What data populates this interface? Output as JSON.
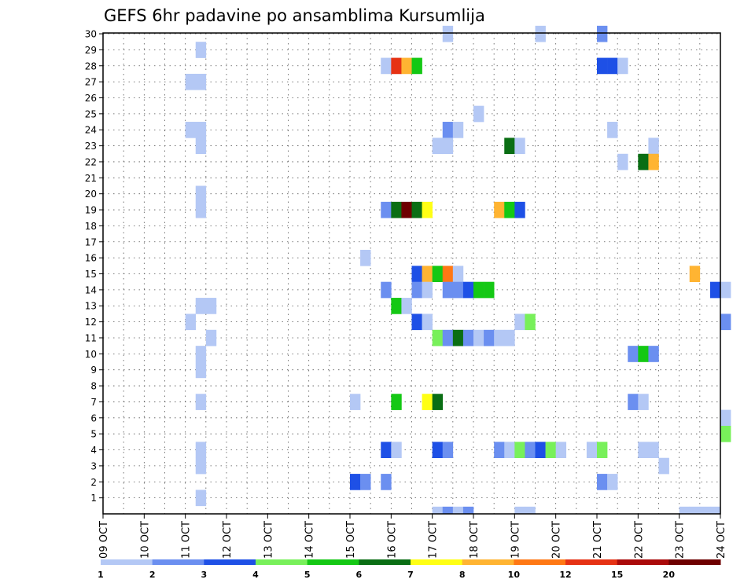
{
  "chart_data": {
    "type": "heatmap",
    "title": "GEFS 6hr padavine po ansamblima Kursumlija",
    "x_ticks": [
      "09 OCT",
      "10 OCT",
      "11 OCT",
      "12 OCT",
      "13 OCT",
      "14 OCT",
      "15 OCT",
      "16 OCT",
      "17 OCT",
      "18 OCT",
      "19 OCT",
      "20 OCT",
      "21 OCT",
      "22 OCT",
      "23 OCT",
      "24 OCT"
    ],
    "y_ticks": [
      "1",
      "2",
      "3",
      "4",
      "5",
      "6",
      "7",
      "8",
      "9",
      "10",
      "11",
      "12",
      "13",
      "14",
      "15",
      "16",
      "17",
      "18",
      "19",
      "20",
      "21",
      "22",
      "23",
      "24",
      "25",
      "26",
      "27",
      "28",
      "29",
      "30"
    ],
    "x_range": [
      "09 OCT 00z",
      "24 OCT 00z"
    ],
    "y_range": [
      0,
      30
    ],
    "step_hours": 6,
    "grid": true,
    "legend": {
      "placement": "bottom",
      "colors": [
        "#b4c8f5",
        "#6b8ff0",
        "#1e50e6",
        "#78f05a",
        "#14c814",
        "#0a6e14",
        "#ffff14",
        "#ffb432",
        "#ff7814",
        "#e63214",
        "#aa0a0a",
        "#6e0000"
      ],
      "labels": [
        "1",
        "2",
        "3",
        "4",
        "5",
        "6",
        "7",
        "8",
        "10",
        "12",
        "15",
        "20"
      ]
    },
    "cells": [
      {
        "m": 30,
        "t": 33,
        "c": 0
      },
      {
        "m": 30,
        "t": 42,
        "c": 0
      },
      {
        "m": 30,
        "t": 48,
        "c": 1
      },
      {
        "m": 29,
        "t": 9,
        "c": 0
      },
      {
        "m": 28,
        "t": 27,
        "c": 0
      },
      {
        "m": 28,
        "t": 28,
        "c": 9
      },
      {
        "m": 28,
        "t": 29,
        "c": 7
      },
      {
        "m": 28,
        "t": 30,
        "c": 4
      },
      {
        "m": 28,
        "t": 48,
        "c": 2
      },
      {
        "m": 28,
        "t": 49,
        "c": 2
      },
      {
        "m": 28,
        "t": 50,
        "c": 0
      },
      {
        "m": 27,
        "t": 8,
        "c": 0
      },
      {
        "m": 27,
        "t": 9,
        "c": 0
      },
      {
        "m": 25,
        "t": 36,
        "c": 0
      },
      {
        "m": 24,
        "t": 8,
        "c": 0
      },
      {
        "m": 24,
        "t": 9,
        "c": 0
      },
      {
        "m": 24,
        "t": 33,
        "c": 1
      },
      {
        "m": 24,
        "t": 34,
        "c": 0
      },
      {
        "m": 24,
        "t": 49,
        "c": 0
      },
      {
        "m": 23,
        "t": 9,
        "c": 0
      },
      {
        "m": 23,
        "t": 32,
        "c": 0
      },
      {
        "m": 23,
        "t": 33,
        "c": 0
      },
      {
        "m": 23,
        "t": 39,
        "c": 5
      },
      {
        "m": 23,
        "t": 40,
        "c": 0
      },
      {
        "m": 23,
        "t": 53,
        "c": 0
      },
      {
        "m": 22,
        "t": 50,
        "c": 0
      },
      {
        "m": 22,
        "t": 52,
        "c": 5
      },
      {
        "m": 22,
        "t": 53,
        "c": 7
      },
      {
        "m": 20,
        "t": 9,
        "c": 0
      },
      {
        "m": 19,
        "t": 9,
        "c": 0
      },
      {
        "m": 19,
        "t": 27,
        "c": 1
      },
      {
        "m": 19,
        "t": 28,
        "c": 5
      },
      {
        "m": 19,
        "t": 29,
        "c": 11
      },
      {
        "m": 19,
        "t": 30,
        "c": 5
      },
      {
        "m": 19,
        "t": 31,
        "c": 6
      },
      {
        "m": 19,
        "t": 38,
        "c": 7
      },
      {
        "m": 19,
        "t": 39,
        "c": 4
      },
      {
        "m": 19,
        "t": 40,
        "c": 2
      },
      {
        "m": 16,
        "t": 25,
        "c": 0
      },
      {
        "m": 15,
        "t": 30,
        "c": 2
      },
      {
        "m": 15,
        "t": 31,
        "c": 7
      },
      {
        "m": 15,
        "t": 32,
        "c": 4
      },
      {
        "m": 15,
        "t": 33,
        "c": 8
      },
      {
        "m": 15,
        "t": 34,
        "c": 0
      },
      {
        "m": 15,
        "t": 57,
        "c": 7
      },
      {
        "m": 14,
        "t": 27,
        "c": 1
      },
      {
        "m": 14,
        "t": 30,
        "c": 1
      },
      {
        "m": 14,
        "t": 31,
        "c": 0
      },
      {
        "m": 14,
        "t": 33,
        "c": 1
      },
      {
        "m": 14,
        "t": 34,
        "c": 1
      },
      {
        "m": 14,
        "t": 35,
        "c": 2
      },
      {
        "m": 14,
        "t": 36,
        "c": 4
      },
      {
        "m": 14,
        "t": 37,
        "c": 4
      },
      {
        "m": 14,
        "t": 59,
        "c": 2
      },
      {
        "m": 14,
        "t": 60,
        "c": 0
      },
      {
        "m": 13,
        "t": 9,
        "c": 0
      },
      {
        "m": 13,
        "t": 10,
        "c": 0
      },
      {
        "m": 13,
        "t": 28,
        "c": 4
      },
      {
        "m": 13,
        "t": 29,
        "c": 0
      },
      {
        "m": 12,
        "t": 8,
        "c": 0
      },
      {
        "m": 12,
        "t": 30,
        "c": 2
      },
      {
        "m": 12,
        "t": 31,
        "c": 0
      },
      {
        "m": 12,
        "t": 40,
        "c": 0
      },
      {
        "m": 12,
        "t": 41,
        "c": 3
      },
      {
        "m": 12,
        "t": 60,
        "c": 1
      },
      {
        "m": 11,
        "t": 10,
        "c": 0
      },
      {
        "m": 11,
        "t": 32,
        "c": 3
      },
      {
        "m": 11,
        "t": 33,
        "c": 1
      },
      {
        "m": 11,
        "t": 34,
        "c": 5
      },
      {
        "m": 11,
        "t": 35,
        "c": 1
      },
      {
        "m": 11,
        "t": 36,
        "c": 0
      },
      {
        "m": 11,
        "t": 37,
        "c": 1
      },
      {
        "m": 11,
        "t": 38,
        "c": 0
      },
      {
        "m": 11,
        "t": 39,
        "c": 0
      },
      {
        "m": 10,
        "t": 9,
        "c": 0
      },
      {
        "m": 10,
        "t": 51,
        "c": 1
      },
      {
        "m": 10,
        "t": 52,
        "c": 4
      },
      {
        "m": 10,
        "t": 53,
        "c": 1
      },
      {
        "m": 9,
        "t": 9,
        "c": 0
      },
      {
        "m": 7,
        "t": 9,
        "c": 0
      },
      {
        "m": 7,
        "t": 24,
        "c": 0
      },
      {
        "m": 7,
        "t": 28,
        "c": 4
      },
      {
        "m": 7,
        "t": 31,
        "c": 6
      },
      {
        "m": 7,
        "t": 32,
        "c": 5
      },
      {
        "m": 7,
        "t": 51,
        "c": 1
      },
      {
        "m": 7,
        "t": 52,
        "c": 0
      },
      {
        "m": 6,
        "t": 60,
        "c": 0
      },
      {
        "m": 5,
        "t": 60,
        "c": 3
      },
      {
        "m": 4,
        "t": 9,
        "c": 0
      },
      {
        "m": 4,
        "t": 27,
        "c": 2
      },
      {
        "m": 4,
        "t": 28,
        "c": 0
      },
      {
        "m": 4,
        "t": 32,
        "c": 2
      },
      {
        "m": 4,
        "t": 33,
        "c": 1
      },
      {
        "m": 4,
        "t": 38,
        "c": 1
      },
      {
        "m": 4,
        "t": 39,
        "c": 0
      },
      {
        "m": 4,
        "t": 40,
        "c": 3
      },
      {
        "m": 4,
        "t": 41,
        "c": 1
      },
      {
        "m": 4,
        "t": 42,
        "c": 2
      },
      {
        "m": 4,
        "t": 43,
        "c": 3
      },
      {
        "m": 4,
        "t": 44,
        "c": 0
      },
      {
        "m": 4,
        "t": 47,
        "c": 0
      },
      {
        "m": 4,
        "t": 48,
        "c": 3
      },
      {
        "m": 4,
        "t": 52,
        "c": 0
      },
      {
        "m": 4,
        "t": 53,
        "c": 0
      },
      {
        "m": 3,
        "t": 9,
        "c": 0
      },
      {
        "m": 3,
        "t": 54,
        "c": 0
      },
      {
        "m": 2,
        "t": 24,
        "c": 2
      },
      {
        "m": 2,
        "t": 25,
        "c": 1
      },
      {
        "m": 2,
        "t": 27,
        "c": 1
      },
      {
        "m": 2,
        "t": 48,
        "c": 1
      },
      {
        "m": 2,
        "t": 49,
        "c": 0
      },
      {
        "m": 1,
        "t": 9,
        "c": 0
      },
      {
        "m": 0,
        "t": 32,
        "c": 0
      },
      {
        "m": 0,
        "t": 33,
        "c": 1
      },
      {
        "m": 0,
        "t": 34,
        "c": 0
      },
      {
        "m": 0,
        "t": 35,
        "c": 1
      },
      {
        "m": 0,
        "t": 40,
        "c": 0
      },
      {
        "m": 0,
        "t": 41,
        "c": 0
      },
      {
        "m": 0,
        "t": 56,
        "c": 0
      },
      {
        "m": 0,
        "t": 57,
        "c": 0
      },
      {
        "m": 0,
        "t": 58,
        "c": 0
      },
      {
        "m": 0,
        "t": 59,
        "c": 0
      }
    ]
  }
}
